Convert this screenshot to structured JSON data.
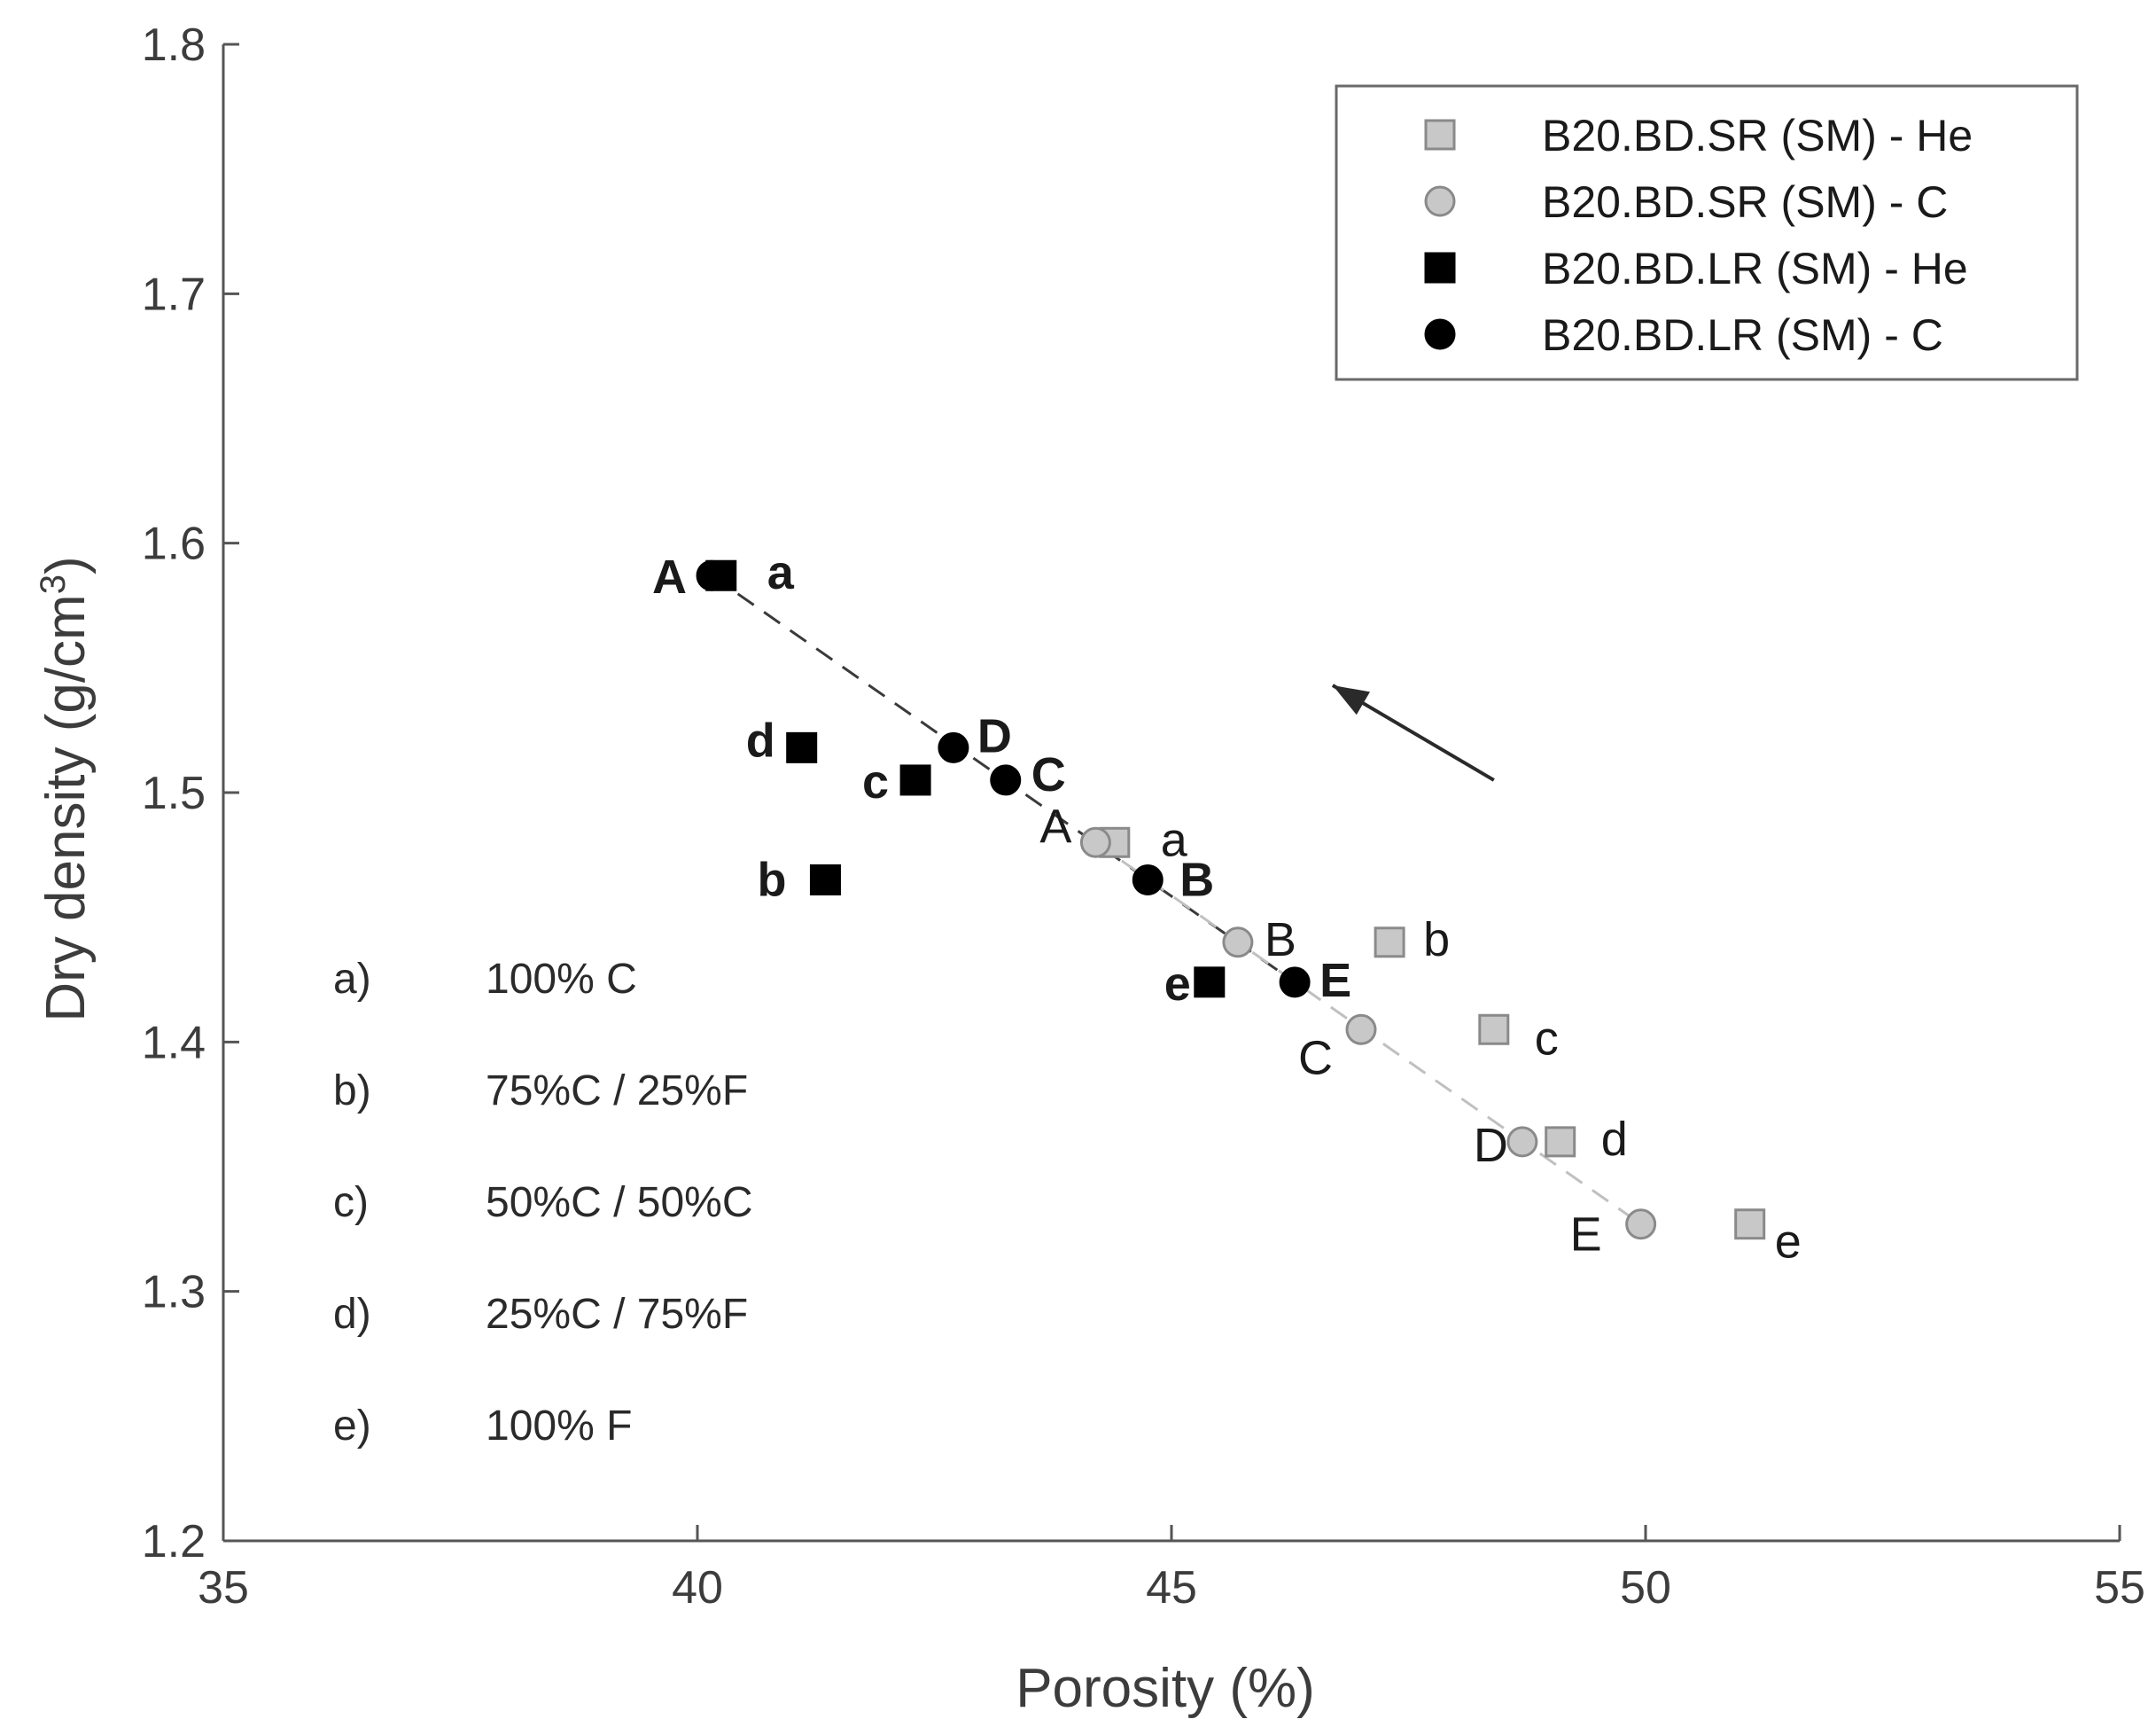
{
  "chart_data": {
    "type": "scatter",
    "title": "",
    "xlabel": "Porosity (%)",
    "ylabel_main": "Dry density (g/cm",
    "ylabel_sup": "3",
    "ylabel_close": ")",
    "xlim": [
      35,
      55
    ],
    "ylim": [
      1.2,
      1.8
    ],
    "xticks": [
      35,
      40,
      45,
      50,
      55
    ],
    "yticks": [
      1.2,
      1.3,
      1.4,
      1.5,
      1.6,
      1.7,
      1.8
    ],
    "xtick_labels": [
      "35",
      "40",
      "45",
      "50",
      "55"
    ],
    "ytick_labels": [
      "1.2",
      "1.3",
      "1.4",
      "1.5",
      "1.6",
      "1.7",
      "1.8"
    ],
    "grid": false,
    "legend_position": "top-right",
    "series": [
      {
        "name": "B20.BD.SR (SM) - He",
        "marker": "square",
        "color": "#c8c8c8",
        "edge": "#8a8a8a",
        "label_style": "regular",
        "points": [
          {
            "x": 44.4,
            "y": 1.48,
            "label": "a"
          },
          {
            "x": 47.3,
            "y": 1.44,
            "label": "b"
          },
          {
            "x": 48.4,
            "y": 1.405,
            "label": "c"
          },
          {
            "x": 49.1,
            "y": 1.36,
            "label": "d"
          },
          {
            "x": 51.1,
            "y": 1.327,
            "label": "e"
          }
        ]
      },
      {
        "name": "B20.BD.SR (SM) - C",
        "marker": "circle",
        "color": "#c8c8c8",
        "edge": "#8a8a8a",
        "label_style": "regular",
        "points": [
          {
            "x": 44.2,
            "y": 1.48,
            "label": "A"
          },
          {
            "x": 45.7,
            "y": 1.44,
            "label": "B"
          },
          {
            "x": 47.0,
            "y": 1.405,
            "label": "C"
          },
          {
            "x": 48.7,
            "y": 1.36,
            "label": "D"
          },
          {
            "x": 49.95,
            "y": 1.327,
            "label": "E"
          }
        ]
      },
      {
        "name": "B20.BD.LR (SM) - He",
        "marker": "square",
        "color": "#000000",
        "edge": "#000000",
        "label_style": "bold",
        "points": [
          {
            "x": 40.25,
            "y": 1.587,
            "label": "a"
          },
          {
            "x": 41.35,
            "y": 1.465,
            "label": "b"
          },
          {
            "x": 42.3,
            "y": 1.505,
            "label": "c"
          },
          {
            "x": 41.1,
            "y": 1.518,
            "label": "d"
          },
          {
            "x": 45.4,
            "y": 1.424,
            "label": "e"
          }
        ]
      },
      {
        "name": "B20.BD.LR (SM) - C",
        "marker": "circle",
        "color": "#000000",
        "edge": "#000000",
        "label_style": "bold",
        "points": [
          {
            "x": 40.15,
            "y": 1.587,
            "label": "A"
          },
          {
            "x": 44.75,
            "y": 1.465,
            "label": "B"
          },
          {
            "x": 43.25,
            "y": 1.505,
            "label": "C"
          },
          {
            "x": 42.7,
            "y": 1.518,
            "label": "D"
          },
          {
            "x": 46.3,
            "y": 1.424,
            "label": "E"
          }
        ]
      }
    ],
    "trend_lines": [
      {
        "style": "dashed",
        "color": "#3a3a3a",
        "from": {
          "x": 40.15,
          "y": 1.587
        },
        "to": {
          "x": 46.3,
          "y": 1.424
        }
      },
      {
        "style": "dashed",
        "color": "#c0c0c0",
        "from": {
          "x": 44.2,
          "y": 1.48
        },
        "to": {
          "x": 49.95,
          "y": 1.327
        }
      }
    ],
    "arrow": {
      "from": {
        "x": 48.4,
        "y": 1.505
      },
      "to": {
        "x": 46.7,
        "y": 1.543
      }
    },
    "annotations": [
      {
        "key": "a)",
        "text": "100% C"
      },
      {
        "key": "b)",
        "text": "75%C / 25%F"
      },
      {
        "key": "c)",
        "text": "50%C / 50%C"
      },
      {
        "key": "d)",
        "text": "25%C / 75%F"
      },
      {
        "key": "e)",
        "text": "100% F"
      }
    ]
  }
}
